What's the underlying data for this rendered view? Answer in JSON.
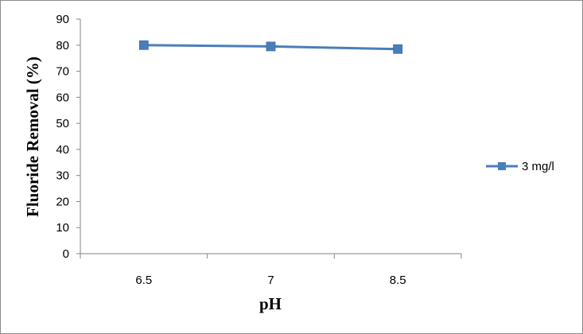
{
  "chart_data": {
    "type": "line",
    "title": "",
    "xlabel": "pH",
    "ylabel": "Fluoride Removal (%)",
    "categories": [
      "6.5",
      "7",
      "8.5"
    ],
    "series": [
      {
        "name": "3 mg/l",
        "values": [
          80,
          79.5,
          78.5
        ],
        "color": "#4a7ebb"
      }
    ],
    "ylim": [
      0,
      90
    ],
    "yticks": [
      0,
      10,
      20,
      30,
      40,
      50,
      60,
      70,
      80,
      90
    ],
    "grid": false,
    "legend": "right"
  }
}
